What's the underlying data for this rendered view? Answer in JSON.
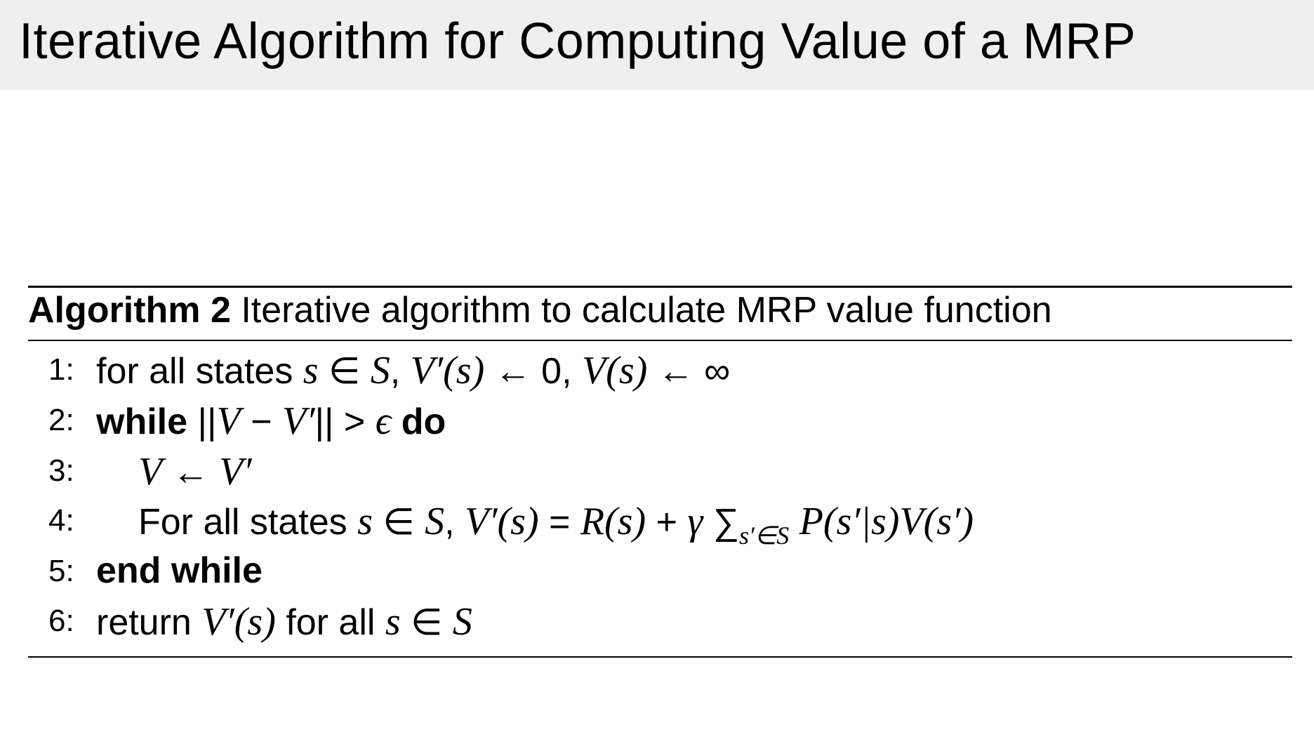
{
  "slide": {
    "title": "Iterative Algorithm for Computing Value of a MRP"
  },
  "algorithm": {
    "label": "Algorithm 2",
    "caption": "Iterative algorithm to calculate MRP value function",
    "lines": [
      {
        "number": "1:",
        "indent": false,
        "segments": [
          {
            "t": "for all states ",
            "s": ""
          },
          {
            "t": "s",
            "s": "i"
          },
          {
            "t": " ∈ ",
            "s": ""
          },
          {
            "t": "S",
            "s": "i"
          },
          {
            "t": ", ",
            "s": ""
          },
          {
            "t": "V′(s)",
            "s": "i"
          },
          {
            "t": " ← 0, ",
            "s": ""
          },
          {
            "t": "V(s)",
            "s": "i"
          },
          {
            "t": " ← ∞",
            "s": ""
          }
        ]
      },
      {
        "number": "2:",
        "indent": false,
        "segments": [
          {
            "t": "while",
            "s": "b"
          },
          {
            "t": " ||",
            "s": ""
          },
          {
            "t": "V",
            "s": "i"
          },
          {
            "t": " − ",
            "s": ""
          },
          {
            "t": "V′",
            "s": "i"
          },
          {
            "t": "|| > ",
            "s": ""
          },
          {
            "t": "ϵ",
            "s": "i"
          },
          {
            "t": " ",
            "s": ""
          },
          {
            "t": "do",
            "s": "b"
          }
        ]
      },
      {
        "number": "3:",
        "indent": true,
        "segments": [
          {
            "t": "V",
            "s": "i"
          },
          {
            "t": " ← ",
            "s": ""
          },
          {
            "t": "V′",
            "s": "i"
          }
        ]
      },
      {
        "number": "4:",
        "indent": true,
        "segments": [
          {
            "t": "For all states ",
            "s": ""
          },
          {
            "t": "s",
            "s": "i"
          },
          {
            "t": " ∈ ",
            "s": ""
          },
          {
            "t": "S",
            "s": "i"
          },
          {
            "t": ", ",
            "s": ""
          },
          {
            "t": "V′(s)",
            "s": "i"
          },
          {
            "t": " = ",
            "s": ""
          },
          {
            "t": "R(s)",
            "s": "i"
          },
          {
            "t": " + ",
            "s": ""
          },
          {
            "t": "γ",
            "s": "i"
          },
          {
            "t": " ∑",
            "s": ""
          },
          {
            "t": "s′∈S",
            "s": "sub"
          },
          {
            "t": " ",
            "s": ""
          },
          {
            "t": "P(s′|s)V(s′)",
            "s": "i"
          }
        ]
      },
      {
        "number": "5:",
        "indent": false,
        "segments": [
          {
            "t": "end while",
            "s": "b"
          }
        ]
      },
      {
        "number": "6:",
        "indent": false,
        "segments": [
          {
            "t": "return ",
            "s": ""
          },
          {
            "t": "V′(s)",
            "s": "i"
          },
          {
            "t": " for all ",
            "s": ""
          },
          {
            "t": "s",
            "s": "i"
          },
          {
            "t": " ∈ ",
            "s": ""
          },
          {
            "t": "S",
            "s": "i"
          }
        ]
      }
    ]
  }
}
